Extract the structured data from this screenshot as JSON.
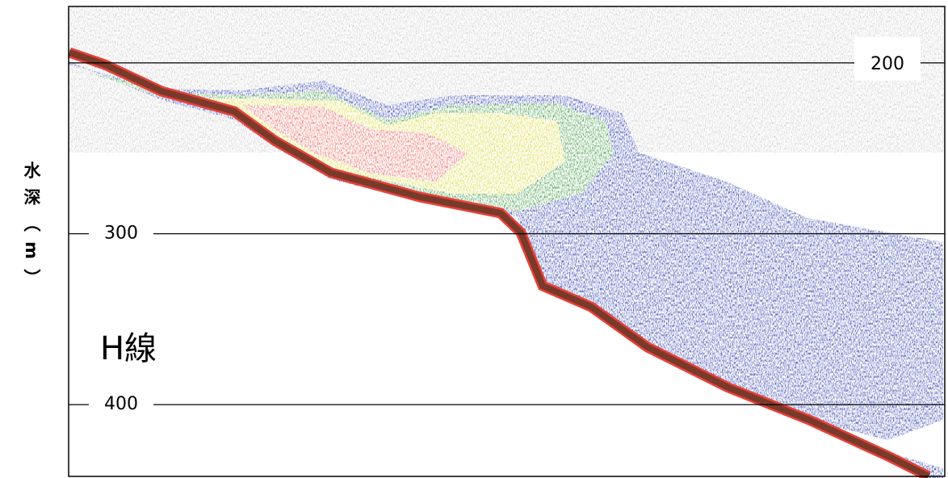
{
  "chart_data": {
    "type": "echogram",
    "y_label": "水深（m）",
    "annotation": "H線",
    "ylim": [
      167,
      442
    ],
    "yticks": [
      200,
      300,
      400
    ]
  }
}
